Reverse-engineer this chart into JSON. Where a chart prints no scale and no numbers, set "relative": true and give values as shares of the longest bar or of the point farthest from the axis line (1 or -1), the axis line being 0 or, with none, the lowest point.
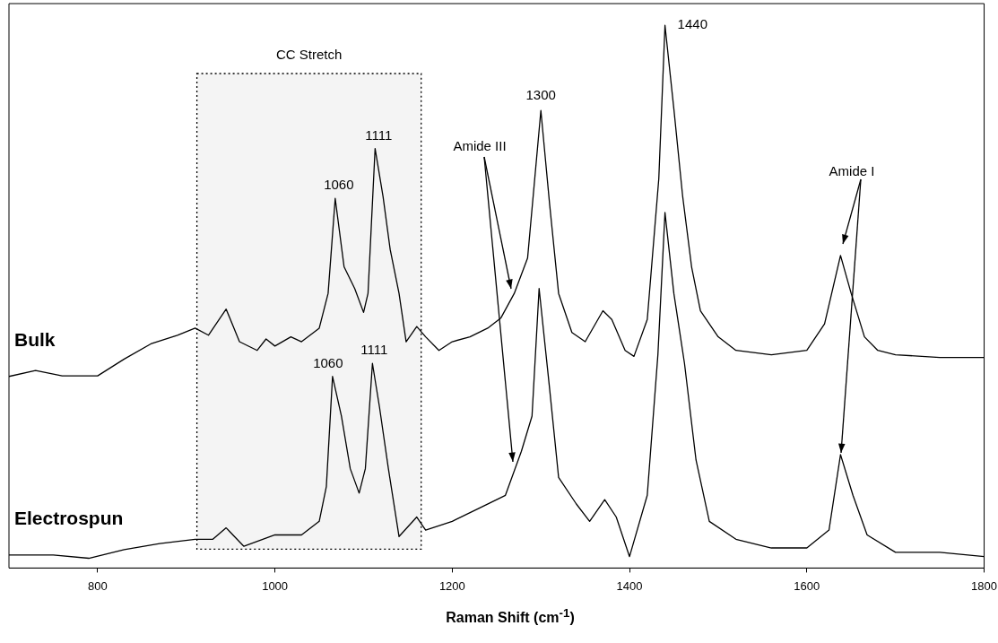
{
  "chart_data": {
    "type": "line",
    "relative": true,
    "xlabel": "Raman Shift (cm$^{-1}$)",
    "xlim": [
      700,
      1800
    ],
    "xticks": [
      800,
      1000,
      1200,
      1400,
      1600,
      1800
    ],
    "grid": false,
    "legend": false,
    "marker": "none",
    "line_style": "solid",
    "bands": [
      {
        "axis": "x",
        "from": 912,
        "to": 1165,
        "label": "CC Stretch",
        "color": "#f4f4f4"
      }
    ],
    "annotations": [
      {
        "text": "1060",
        "x": 1068,
        "y": 0.681
      },
      {
        "text": "1111",
        "x": 1113,
        "y": 0.773
      },
      {
        "text": "1300",
        "x": 1300,
        "y": 0.843
      },
      {
        "text": "1440",
        "x": 1440,
        "y": 1
      },
      {
        "text": "1060",
        "x": 1065,
        "y": 0.353
      },
      {
        "text": "1111",
        "x": 1110,
        "y": 0.377
      },
      "Amide III",
      "Amide I"
    ],
    "series": [
      {
        "name": "Bulk",
        "color": "#000000",
        "x": [
          700,
          730,
          760,
          800,
          830,
          860,
          890,
          910,
          925,
          945,
          960,
          980,
          990,
          1000,
          1018,
          1030,
          1050,
          1060,
          1068,
          1078,
          1090,
          1100,
          1105,
          1113,
          1122,
          1130,
          1140,
          1148,
          1160,
          1170,
          1185,
          1200,
          1220,
          1240,
          1255,
          1270,
          1285,
          1300,
          1310,
          1320,
          1335,
          1350,
          1370,
          1380,
          1395,
          1405,
          1420,
          1433,
          1440,
          1450,
          1460,
          1470,
          1480,
          1500,
          1520,
          1560,
          1600,
          1620,
          1638,
          1650,
          1665,
          1680,
          1700,
          1750,
          1800
        ],
        "values": [
          0.353,
          0.364,
          0.354,
          0.354,
          0.385,
          0.413,
          0.429,
          0.442,
          0.429,
          0.477,
          0.417,
          0.401,
          0.422,
          0.409,
          0.426,
          0.417,
          0.442,
          0.506,
          0.681,
          0.555,
          0.515,
          0.471,
          0.506,
          0.773,
          0.684,
          0.587,
          0.506,
          0.417,
          0.445,
          0.426,
          0.401,
          0.417,
          0.426,
          0.442,
          0.461,
          0.506,
          0.571,
          0.843,
          0.668,
          0.506,
          0.434,
          0.417,
          0.474,
          0.458,
          0.401,
          0.39,
          0.458,
          0.717,
          1,
          0.846,
          0.684,
          0.555,
          0.474,
          0.426,
          0.401,
          0.393,
          0.401,
          0.45,
          0.576,
          0.506,
          0.426,
          0.401,
          0.393,
          0.388,
          0.388
        ]
      },
      {
        "name": "Electrospun",
        "color": "#000000",
        "x": [
          700,
          750,
          790,
          830,
          870,
          910,
          930,
          945,
          965,
          1000,
          1030,
          1050,
          1058,
          1065,
          1075,
          1085,
          1095,
          1102,
          1110,
          1118,
          1128,
          1140,
          1160,
          1170,
          1200,
          1230,
          1260,
          1278,
          1290,
          1298,
          1310,
          1320,
          1340,
          1355,
          1372,
          1385,
          1400,
          1420,
          1432,
          1440,
          1450,
          1462,
          1475,
          1490,
          1520,
          1560,
          1600,
          1625,
          1638,
          1652,
          1668,
          1700,
          1750,
          1800
        ],
        "values": [
          0.024,
          0.024,
          0.018,
          0.034,
          0.045,
          0.053,
          0.053,
          0.074,
          0.04,
          0.061,
          0.061,
          0.086,
          0.15,
          0.353,
          0.28,
          0.183,
          0.138,
          0.183,
          0.377,
          0.296,
          0.183,
          0.058,
          0.094,
          0.07,
          0.086,
          0.11,
          0.134,
          0.215,
          0.28,
          0.515,
          0.328,
          0.167,
          0.118,
          0.086,
          0.126,
          0.094,
          0.021,
          0.134,
          0.393,
          0.655,
          0.506,
          0.377,
          0.199,
          0.086,
          0.053,
          0.037,
          0.037,
          0.07,
          0.209,
          0.134,
          0.061,
          0.029,
          0.029,
          0.021
        ]
      }
    ]
  }
}
